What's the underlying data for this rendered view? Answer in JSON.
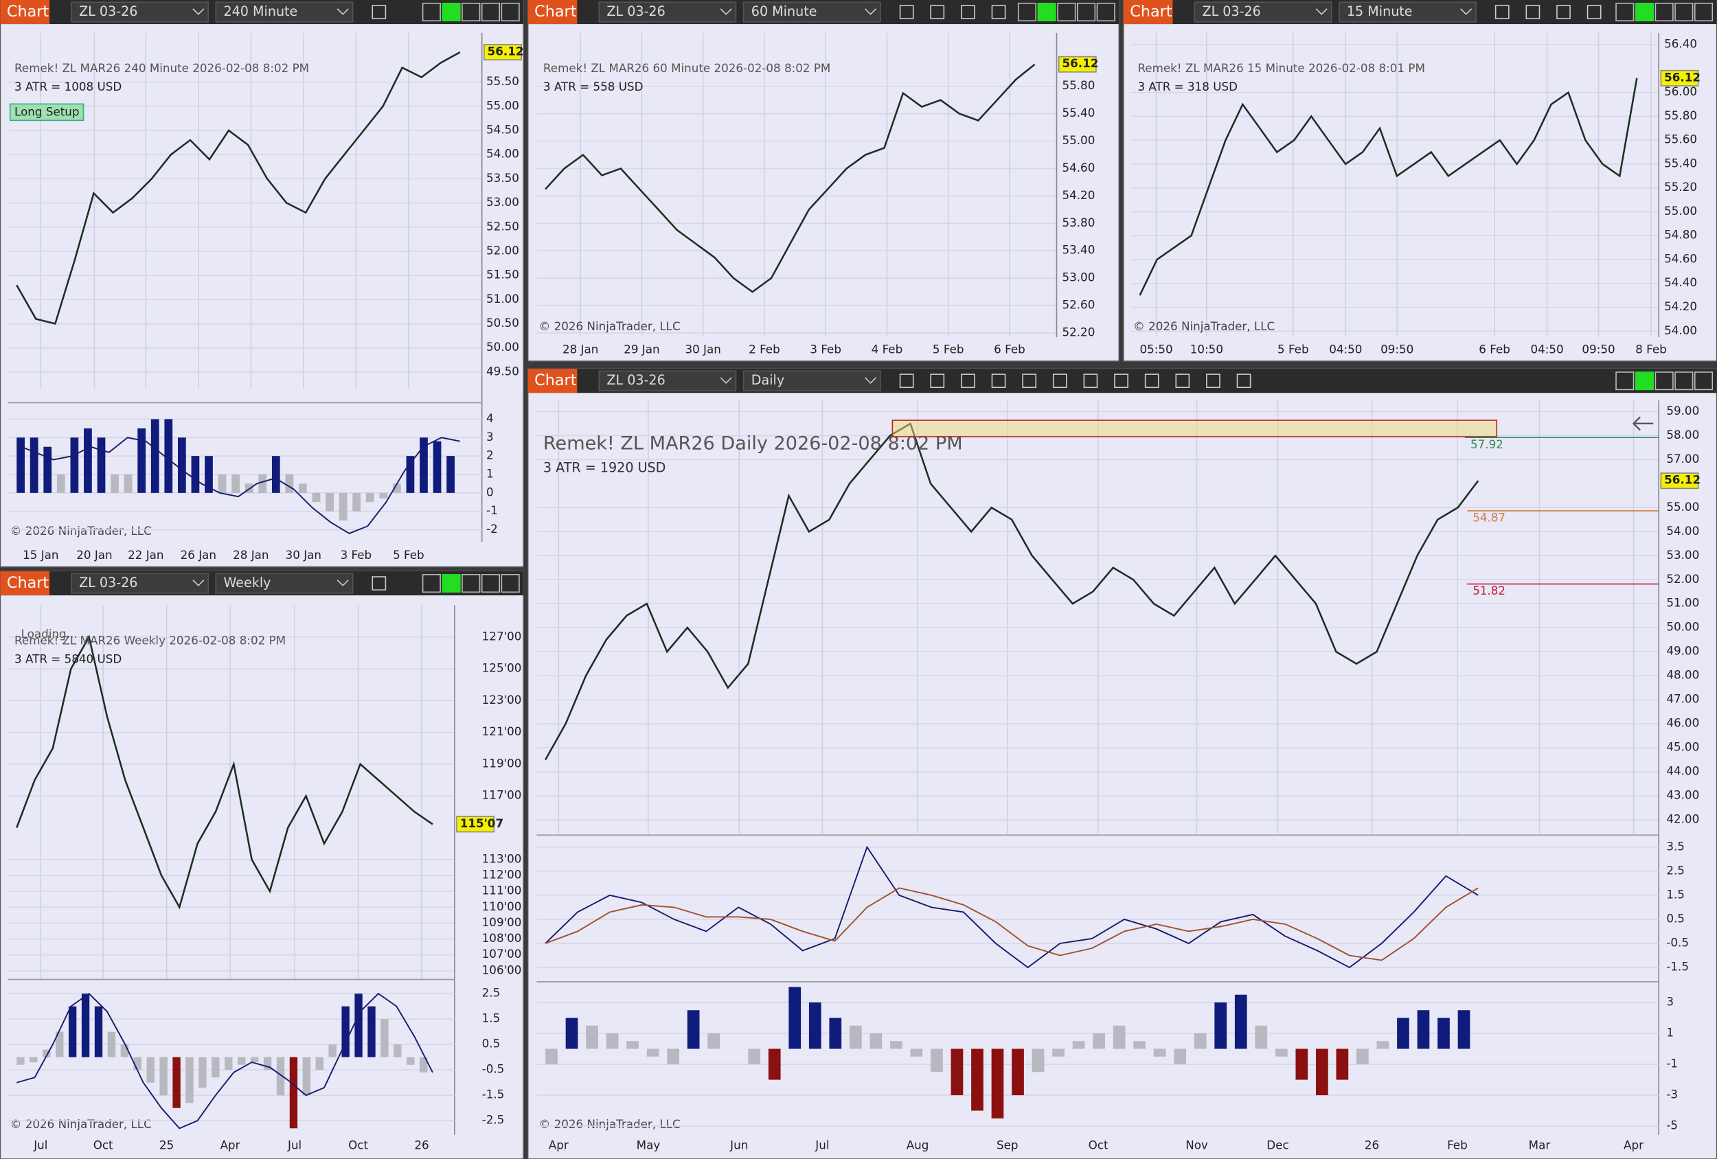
{
  "panels": [
    {
      "header": {
        "label": "Chart",
        "symbol": "ZL 03-26",
        "interval": "240 Minute"
      },
      "title": "Remek!  ZL MAR26  240 Minute  2026-02-08 8:02 PM",
      "atr": "3 ATR = 1008 USD",
      "badge": "Long Setup",
      "copyright": "© 2026 NinjaTrader, LLC",
      "ylim": [
        49.16,
        56.52
      ],
      "yticks": [
        {
          "value": 55.5,
          "label": "55.50"
        },
        {
          "value": 55,
          "label": "55.00"
        },
        {
          "value": 54.5,
          "label": "54.50"
        },
        {
          "value": 54,
          "label": "54.00"
        },
        {
          "value": 53.5,
          "label": "53.50"
        },
        {
          "value": 53,
          "label": "53.00"
        },
        {
          "value": 52.5,
          "label": "52.50"
        },
        {
          "value": 52,
          "label": "52.00"
        },
        {
          "value": 51.5,
          "label": "51.50"
        },
        {
          "value": 51,
          "label": "51.00"
        },
        {
          "value": 50.5,
          "label": "50.50"
        },
        {
          "value": 50,
          "label": "50.00"
        },
        {
          "value": 49.5,
          "label": "49.50"
        }
      ],
      "last": {
        "value": 56.12,
        "label": "56.12"
      },
      "xlabels": [
        "15 Jan",
        "20 Jan",
        "22 Jan",
        "26 Jan",
        "28 Jan",
        "30 Jan",
        "3 Feb",
        "5 Feb"
      ],
      "closes": [
        51.3,
        50.6,
        50.5,
        51.8,
        53.2,
        52.8,
        53.1,
        53.5,
        54,
        54.3,
        53.9,
        54.5,
        54.2,
        53.5,
        53,
        52.8,
        53.5,
        54,
        54.5,
        55,
        55.8,
        55.6,
        55.9,
        56.12
      ],
      "ind_lim": [
        -2.65,
        4.77
      ],
      "ind_ticks": [
        4,
        3,
        2,
        1,
        0,
        -1,
        -2
      ],
      "hist": [
        3,
        3,
        2.5,
        1,
        3,
        3.5,
        3,
        1,
        1,
        3.5,
        4,
        4,
        3,
        2,
        2,
        1,
        1,
        0.5,
        1,
        2,
        1,
        0.5,
        -0.5,
        -1,
        -1.5,
        -1,
        -0.5,
        -0.3,
        0.5,
        2,
        3,
        2.8,
        2
      ],
      "osc": [
        2.6,
        2.2,
        1.8,
        2,
        2.5,
        2.2,
        3,
        2.8,
        2,
        1.2,
        0.5,
        0,
        -0.2,
        0.5,
        0.8,
        0.2,
        -0.8,
        -1.6,
        -2.2,
        -1.8,
        -0.5,
        1.2,
        2.5,
        3,
        2.8
      ]
    },
    {
      "header": {
        "label": "Chart",
        "symbol": "ZL 03-26",
        "interval": "60 Minute"
      },
      "title": "Remek!  ZL MAR26  60 Minute  2026-02-08 8:02 PM",
      "atr": "3 ATR = 558 USD",
      "copyright": "© 2026 NinjaTrader, LLC",
      "ylim": [
        52.14,
        56.58
      ],
      "yticks": [
        {
          "value": 55.8,
          "label": "55.80"
        },
        {
          "value": 55.4,
          "label": "55.40"
        },
        {
          "value": 55,
          "label": "55.00"
        },
        {
          "value": 54.6,
          "label": "54.60"
        },
        {
          "value": 54.2,
          "label": "54.20"
        },
        {
          "value": 53.8,
          "label": "53.80"
        },
        {
          "value": 53.4,
          "label": "53.40"
        },
        {
          "value": 53,
          "label": "53.00"
        },
        {
          "value": 52.6,
          "label": "52.60"
        },
        {
          "value": 52.2,
          "label": "52.20"
        }
      ],
      "last": {
        "value": 56.12,
        "label": "56.12"
      },
      "xlabels": [
        "28 Jan",
        "29 Jan",
        "30 Jan",
        "2 Feb",
        "3 Feb",
        "4 Feb",
        "5 Feb",
        "6 Feb"
      ],
      "closes": [
        54.3,
        54.6,
        54.8,
        54.5,
        54.6,
        54.3,
        54,
        53.7,
        53.5,
        53.3,
        53,
        52.8,
        53,
        53.5,
        54,
        54.3,
        54.6,
        54.8,
        54.9,
        55.7,
        55.5,
        55.6,
        55.4,
        55.3,
        55.6,
        55.9,
        56.12
      ]
    },
    {
      "header": {
        "label": "Chart",
        "symbol": "ZL 03-26",
        "interval": "15 Minute"
      },
      "title": "Remek!  ZL MAR26  15 Minute  2026-02-08 8:01 PM",
      "atr": "3 ATR = 318 USD",
      "copyright": "© 2026 NinjaTrader, LLC",
      "ylim": [
        53.95,
        56.5
      ],
      "yticks": [
        {
          "value": 56.4,
          "label": "56.40"
        },
        {
          "value": 56,
          "label": "56.00"
        },
        {
          "value": 55.8,
          "label": "55.80"
        },
        {
          "value": 55.6,
          "label": "55.60"
        },
        {
          "value": 55.4,
          "label": "55.40"
        },
        {
          "value": 55.2,
          "label": "55.20"
        },
        {
          "value": 55,
          "label": "55.00"
        },
        {
          "value": 54.8,
          "label": "54.80"
        },
        {
          "value": 54.6,
          "label": "54.60"
        },
        {
          "value": 54.4,
          "label": "54.40"
        },
        {
          "value": 54.2,
          "label": "54.20"
        },
        {
          "value": 54,
          "label": "54.00"
        }
      ],
      "last": {
        "value": 56.12,
        "label": "56.12"
      },
      "xlabels": [
        "05:50",
        "10:50",
        "5 Feb",
        "04:50",
        "09:50",
        "6 Feb",
        "04:50",
        "09:50",
        "8 Feb"
      ],
      "closes": [
        54.3,
        54.6,
        54.7,
        54.8,
        55.2,
        55.6,
        55.9,
        55.7,
        55.5,
        55.6,
        55.8,
        55.6,
        55.4,
        55.5,
        55.7,
        55.3,
        55.4,
        55.5,
        55.3,
        55.4,
        55.5,
        55.6,
        55.4,
        55.6,
        55.9,
        56,
        55.6,
        55.4,
        55.3,
        56.12
      ]
    },
    {
      "header": {
        "label": "Chart",
        "symbol": "ZL 03-26",
        "interval": "Weekly"
      },
      "loading": "Loading...",
      "title": "Remek!  ZL MAR26  Weekly  2026-02-08 8:02 PM",
      "atr": "3 ATR = 5840 USD",
      "copyright": "© 2026 NinjaTrader, LLC",
      "ylim": [
        105.45,
        129
      ],
      "yticks": [
        {
          "value": 127,
          "label": "127'00"
        },
        {
          "value": 125,
          "label": "125'00"
        },
        {
          "value": 123,
          "label": "123'00"
        },
        {
          "value": 121,
          "label": "121'00"
        },
        {
          "value": 119,
          "label": "119'00"
        },
        {
          "value": 117,
          "label": "117'00"
        },
        {
          "value": 113,
          "label": "113'00"
        },
        {
          "value": 112,
          "label": "112'00"
        },
        {
          "value": 111,
          "label": "111'00"
        },
        {
          "value": 110,
          "label": "110'00"
        },
        {
          "value": 109,
          "label": "109'00"
        },
        {
          "value": 108,
          "label": "108'00"
        },
        {
          "value": 107,
          "label": "107'00"
        },
        {
          "value": 106,
          "label": "106'00"
        }
      ],
      "last": {
        "value": 115.22,
        "label": "115'07"
      },
      "xlabels": [
        "Jul",
        "Oct",
        "25",
        "Apr",
        "Jul",
        "Oct",
        "26"
      ],
      "closes": [
        115,
        118,
        120,
        125,
        127,
        122,
        118,
        115,
        112,
        110,
        114,
        116,
        119,
        113,
        111,
        115,
        117,
        114,
        116,
        119,
        118,
        117,
        116,
        115.22
      ],
      "ind_lim": [
        -3.06,
        2.97
      ],
      "ind_ticks": [
        2.5,
        1.5,
        0.5,
        -0.5,
        -1.5,
        -2.5
      ],
      "hist": [
        -0.3,
        -0.2,
        0.3,
        1,
        2,
        2.5,
        2,
        1,
        0.5,
        -0.5,
        -1,
        -1.5,
        -2,
        -1.8,
        -1.2,
        -0.8,
        -0.5,
        -0.3,
        -0.2,
        -0.5,
        -1.5,
        -2.8,
        -1.5,
        -0.5,
        0.5,
        2,
        2.5,
        2,
        1.5,
        0.5,
        -0.3,
        -0.6
      ],
      "osc": [
        -1,
        -0.8,
        0.5,
        2,
        2.5,
        1.8,
        0.5,
        -1,
        -2,
        -2.8,
        -2.5,
        -1.5,
        -0.6,
        -0.2,
        -0.4,
        -0.9,
        -1.5,
        -1.2,
        0.3,
        1.8,
        2.5,
        2,
        0.8,
        -0.6
      ]
    },
    {
      "header": {
        "label": "Chart",
        "symbol": "ZL 03-26",
        "interval": "Daily"
      },
      "title": "Remek!  ZL MAR26  Daily  2026-02-08 8:02 PM",
      "atr": "3 ATR = 1920 USD",
      "copyright": "© 2026 NinjaTrader, LLC",
      "ylim": [
        41.41,
        59.46
      ],
      "yticks": [
        {
          "value": 59,
          "label": "59.00"
        },
        {
          "value": 58,
          "label": "58.00"
        },
        {
          "value": 57,
          "label": "57.00"
        },
        {
          "value": 55,
          "label": "55.00"
        },
        {
          "value": 54,
          "label": "54.00"
        },
        {
          "value": 53,
          "label": "53.00"
        },
        {
          "value": 52,
          "label": "52.00"
        },
        {
          "value": 51,
          "label": "51.00"
        },
        {
          "value": 50,
          "label": "50.00"
        },
        {
          "value": 49,
          "label": "49.00"
        },
        {
          "value": 48,
          "label": "48.00"
        },
        {
          "value": 47,
          "label": "47.00"
        },
        {
          "value": 46,
          "label": "46.00"
        },
        {
          "value": 45,
          "label": "45.00"
        },
        {
          "value": 44,
          "label": "44.00"
        },
        {
          "value": 43,
          "label": "43.00"
        },
        {
          "value": 42,
          "label": "42.00"
        }
      ],
      "last": {
        "value": 56.12,
        "label": "56.12"
      },
      "xlabels": [
        "Apr",
        "May",
        "Jun",
        "Jul",
        "Aug",
        "Sep",
        "Oct",
        "Nov",
        "Dec",
        "26",
        "Feb",
        "Mar",
        "Apr"
      ],
      "levels": [
        {
          "value": 57.92,
          "label": "57.92"
        },
        {
          "value": 54.87,
          "label": "54.87"
        },
        {
          "value": 51.82,
          "label": "51.82"
        }
      ],
      "closes": [
        44.5,
        46,
        48,
        49.5,
        50.5,
        51,
        49,
        50,
        49,
        47.5,
        48.5,
        52,
        55.5,
        54,
        54.5,
        56,
        57,
        58,
        58.5,
        56,
        55,
        54,
        55,
        54.5,
        53,
        52,
        51,
        51.5,
        52.5,
        52,
        51,
        50.5,
        51.5,
        52.5,
        51,
        52,
        53,
        52,
        51,
        49,
        48.5,
        49,
        51,
        53,
        54.5,
        55,
        56.12
      ],
      "macd_lim": [
        -2.09,
        3.91
      ],
      "macd_ticks": [
        3.5,
        2.5,
        1.5,
        0.5,
        -0.5,
        -1.5
      ],
      "macd": [
        -0.5,
        0.8,
        1.5,
        1.2,
        0.5,
        0,
        1,
        0.3,
        -0.8,
        -0.3,
        3.5,
        1.5,
        1,
        0.8,
        -0.5,
        -1.5,
        -0.5,
        -0.3,
        0.5,
        0.1,
        -0.5,
        0.4,
        0.7,
        -0.2,
        -0.8,
        -1.5,
        -0.5,
        0.8,
        2.3,
        1.5
      ],
      "signal": [
        -0.5,
        0,
        0.8,
        1.1,
        1,
        0.6,
        0.6,
        0.5,
        0,
        -0.4,
        1,
        1.8,
        1.5,
        1.1,
        0.4,
        -0.6,
        -1,
        -0.7,
        0,
        0.3,
        0,
        0.2,
        0.5,
        0.3,
        -0.3,
        -1,
        -1.2,
        -0.3,
        1,
        1.8
      ],
      "hist_lim": [
        -5.57,
        4.2
      ],
      "hist_ticks": [
        3,
        1,
        -1,
        -3,
        -5
      ],
      "hist": [
        -1,
        2,
        1.5,
        1,
        0.5,
        -0.5,
        -1,
        2.5,
        1,
        0,
        -1,
        -2,
        4,
        3,
        2,
        1.5,
        1,
        0.5,
        -0.5,
        -1.5,
        -3,
        -4,
        -4.5,
        -3,
        -1.5,
        -0.5,
        0.5,
        1,
        1.5,
        0.5,
        -0.5,
        -1,
        1,
        3,
        3.5,
        1.5,
        -0.5,
        -2,
        -3,
        -2,
        -1,
        0.5,
        2,
        2.5,
        2,
        2.5
      ]
    }
  ]
}
